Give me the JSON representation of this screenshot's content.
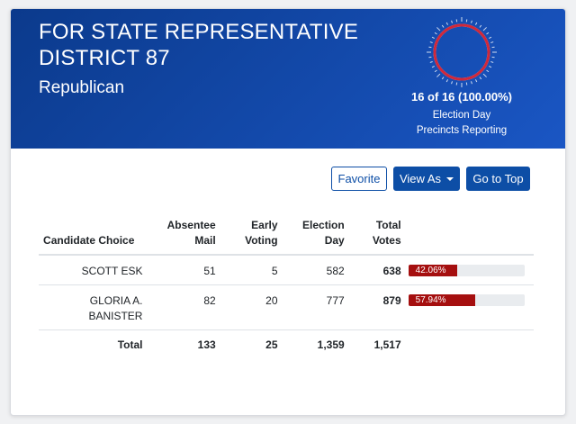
{
  "header": {
    "title_line1": "FOR STATE REPRESENTATIVE",
    "title_line2": "DISTRICT 87",
    "party": "Republican",
    "reporting_summary": "16 of 16 (100.00%)",
    "reporting_sub1": "Election Day",
    "reporting_sub2": "Precincts Reporting",
    "precincts_reported": 16,
    "precincts_total": 16,
    "gauge_color": "#d0283a"
  },
  "toolbar": {
    "favorite_label": "Favorite",
    "view_as_label": "View As",
    "go_top_label": "Go to Top"
  },
  "table": {
    "headers": {
      "candidate": "Candidate Choice",
      "absentee_1": "Absentee",
      "absentee_2": "Mail",
      "early_1": "Early",
      "early_2": "Voting",
      "election_1": "Election",
      "election_2": "Day",
      "total_1": "Total",
      "total_2": "Votes"
    },
    "rows": [
      {
        "name": "SCOTT ESK",
        "absentee": "51",
        "early": "5",
        "election_day": "582",
        "total": "638",
        "percent_label": "42.06%",
        "percent": 42.06
      },
      {
        "name": "GLORIA A. BANISTER",
        "absentee": "82",
        "early": "20",
        "election_day": "777",
        "total": "879",
        "percent_label": "57.94%",
        "percent": 57.94
      }
    ],
    "totals": {
      "label": "Total",
      "absentee": "133",
      "early": "25",
      "election_day": "1,359",
      "total": "1,517"
    },
    "bar_color": "#a50f0f"
  }
}
